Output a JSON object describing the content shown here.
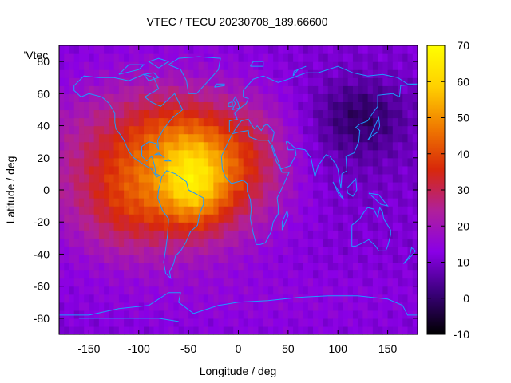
{
  "chart_data": {
    "type": "heatmap",
    "title": "VTEC / TECU 20230708_189.66600",
    "xlabel": "Longitude / deg",
    "ylabel": "Latitude / deg",
    "legend_label": "'Vtec_",
    "xlim": [
      -180,
      180
    ],
    "ylim": [
      -90,
      90
    ],
    "x_ticks": [
      -150,
      -100,
      -50,
      0,
      50,
      100,
      150
    ],
    "y_ticks": [
      -80,
      -60,
      -40,
      -20,
      0,
      20,
      40,
      60,
      80
    ],
    "colorbar": {
      "range": [
        -10,
        70
      ],
      "ticks": [
        -10,
        0,
        10,
        20,
        30,
        40,
        50,
        60,
        70
      ],
      "palette": [
        "#000000",
        "#3a007a",
        "#8a00e6",
        "#b0209a",
        "#d8280a",
        "#f07a00",
        "#ffd000",
        "#ffff00"
      ]
    },
    "coastline_color": "#1e9bff",
    "grid": false,
    "features": [
      {
        "lon": -100,
        "lat": 15,
        "sx": 70,
        "sy": 35,
        "value": 22
      },
      {
        "lon": -35,
        "lat": 10,
        "sx": 50,
        "sy": 30,
        "value": 18
      },
      {
        "lon": -45,
        "lat": 5,
        "sx": 22,
        "sy": 18,
        "value": 20
      },
      {
        "lon": -115,
        "lat": -15,
        "sx": 30,
        "sy": 20,
        "value": 7
      },
      {
        "lon": -70,
        "lat": 40,
        "sx": 35,
        "sy": 18,
        "value": 5
      },
      {
        "lon": 15,
        "lat": 25,
        "sx": 35,
        "sy": 25,
        "value": 8
      },
      {
        "lon": 125,
        "lat": 47,
        "sx": 30,
        "sy": 15,
        "value": -9
      },
      {
        "lon": 100,
        "lat": 30,
        "sx": 50,
        "sy": 25,
        "value": -4
      },
      {
        "lon": 30,
        "lat": -70,
        "sx": 120,
        "sy": 15,
        "value": 3
      }
    ]
  }
}
